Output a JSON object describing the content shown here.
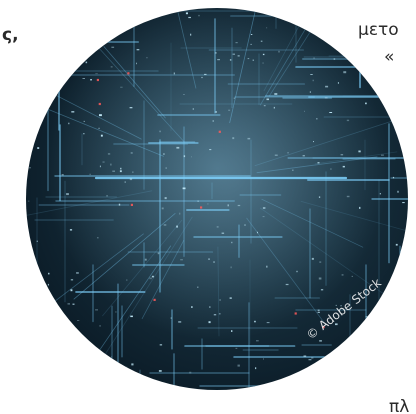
{
  "fragments": {
    "left_text": "ς,",
    "right_top": "μετο",
    "right_quote": "«",
    "bottom_right": "πλ"
  },
  "image": {
    "credit": "© Adobe Stock",
    "accent_color": "#7fd3ff",
    "background_color": "#0d1f2b"
  }
}
